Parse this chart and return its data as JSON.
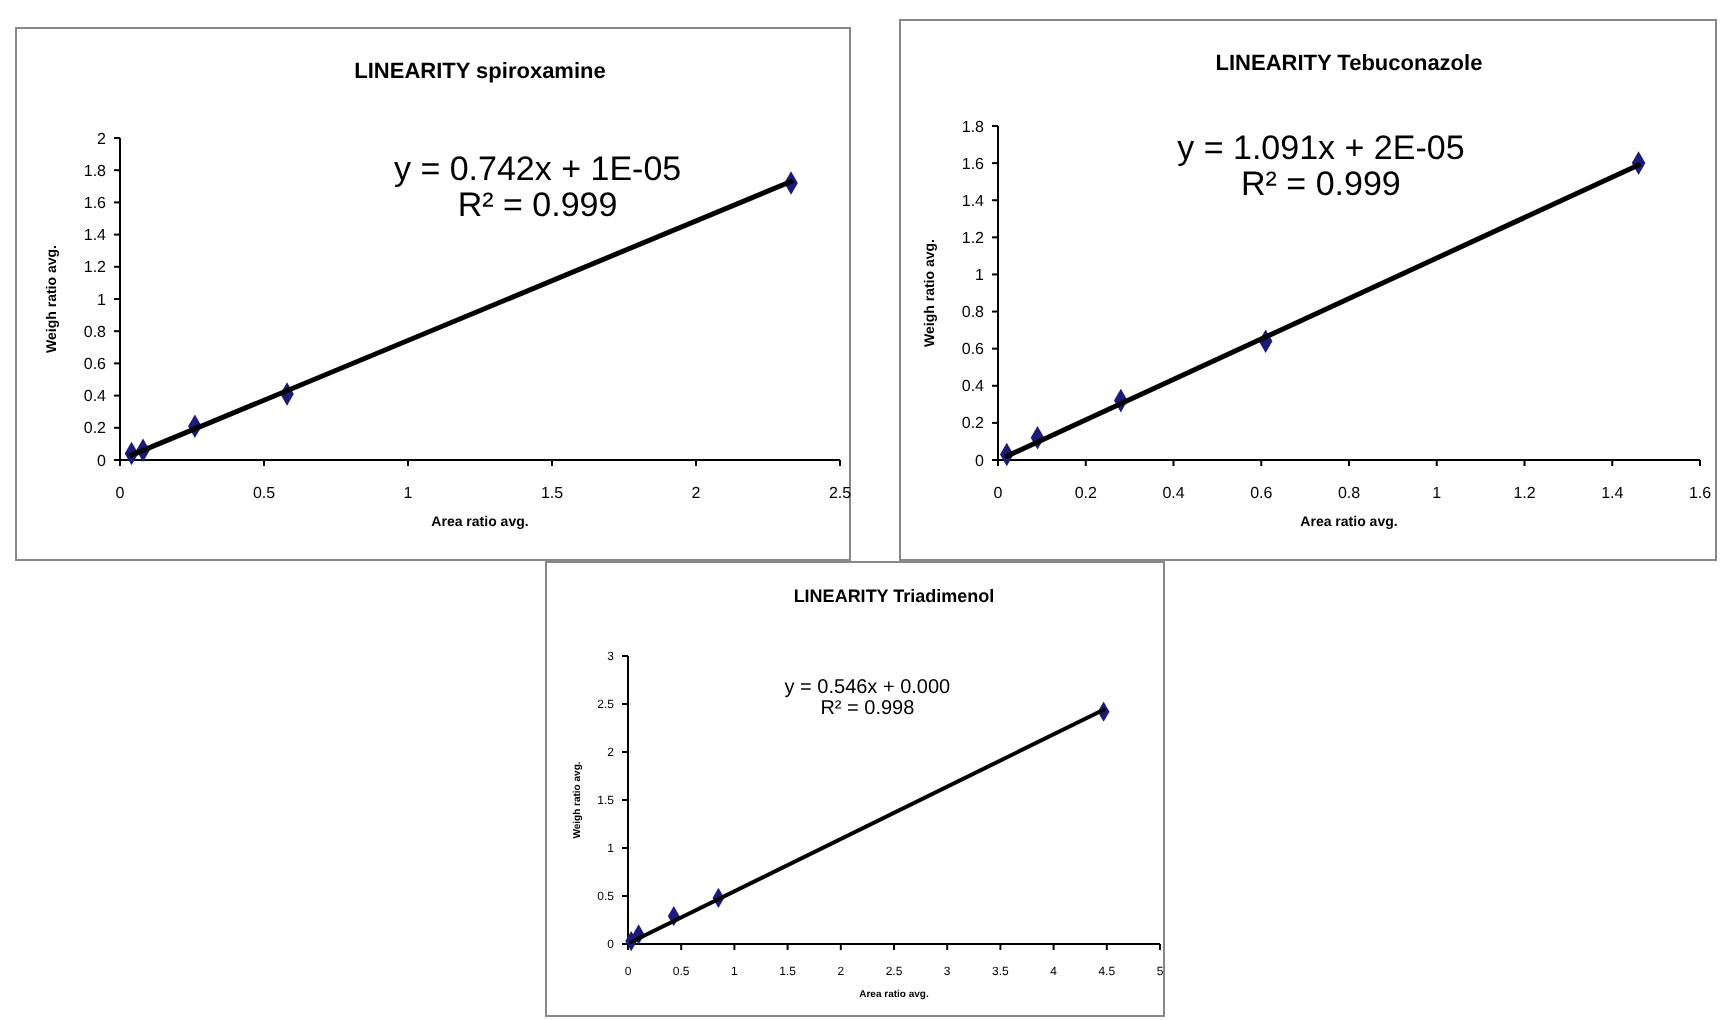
{
  "chart_data": [
    {
      "type": "scatter",
      "title": "LINEARITY spiroxamine",
      "xlabel": "Area ratio avg.",
      "ylabel": "Weigh ratio avg.",
      "annotations": [
        "y = 0.742x + 1E-05",
        "R² = 0.999"
      ],
      "marker": "diamond",
      "xlim": [
        0,
        2.5
      ],
      "xticks": [
        0,
        0.5,
        1,
        1.5,
        2,
        2.5
      ],
      "ylim": [
        0,
        2
      ],
      "yticks": [
        0,
        0.2,
        0.4,
        0.6,
        0.8,
        1,
        1.2,
        1.4,
        1.6,
        1.8,
        2
      ],
      "series": [
        {
          "color": "#1c1c78",
          "x": [
            0.04,
            0.08,
            0.26,
            0.58,
            2.33
          ],
          "values": [
            0.04,
            0.06,
            0.21,
            0.41,
            1.72
          ]
        },
        {
          "type": "line",
          "marker": "none",
          "color": "#000000",
          "x": [
            0.04,
            2.33
          ],
          "values": [
            0.03,
            1.73
          ]
        }
      ]
    },
    {
      "type": "scatter",
      "title": "LINEARITY Tebuconazole",
      "xlabel": "Area ratio avg.",
      "ylabel": "Weigh ratio avg.",
      "annotations": [
        "y = 1.091x + 2E-05",
        "R² = 0.999"
      ],
      "marker": "diamond",
      "xlim": [
        0,
        1.6
      ],
      "xticks": [
        0,
        0.2,
        0.4,
        0.6,
        0.8,
        1,
        1.2,
        1.4,
        1.6
      ],
      "ylim": [
        0,
        1.8
      ],
      "yticks": [
        0,
        0.2,
        0.4,
        0.6,
        0.8,
        1,
        1.2,
        1.4,
        1.6,
        1.8
      ],
      "series": [
        {
          "color": "#1c1c78",
          "x": [
            0.02,
            0.09,
            0.28,
            0.61,
            1.46
          ],
          "values": [
            0.03,
            0.12,
            0.32,
            0.64,
            1.6
          ]
        },
        {
          "type": "line",
          "marker": "none",
          "color": "#000000",
          "x": [
            0.02,
            1.46
          ],
          "values": [
            0.02,
            1.59
          ]
        }
      ]
    },
    {
      "type": "scatter",
      "title": "LINEARITY Triadimenol",
      "xlabel": "Area ratio avg.",
      "ylabel": "Weigh ratio avg.",
      "annotations": [
        "y = 0.546x  + 0.000",
        "R² = 0.998"
      ],
      "marker": "diamond",
      "xlim": [
        0,
        5
      ],
      "xticks": [
        0,
        0.5,
        1,
        1.5,
        2,
        2.5,
        3,
        3.5,
        4,
        4.5,
        5
      ],
      "ylim": [
        0,
        3
      ],
      "yticks": [
        0,
        0.5,
        1,
        1.5,
        2,
        2.5,
        3
      ],
      "series": [
        {
          "color": "#1c1c78",
          "x": [
            0.03,
            0.1,
            0.43,
            0.85,
            4.47
          ],
          "values": [
            0.03,
            0.1,
            0.29,
            0.48,
            2.42
          ]
        },
        {
          "type": "line",
          "marker": "none",
          "color": "#000000",
          "x": [
            0.03,
            4.47
          ],
          "values": [
            0.02,
            2.44
          ]
        }
      ]
    }
  ]
}
